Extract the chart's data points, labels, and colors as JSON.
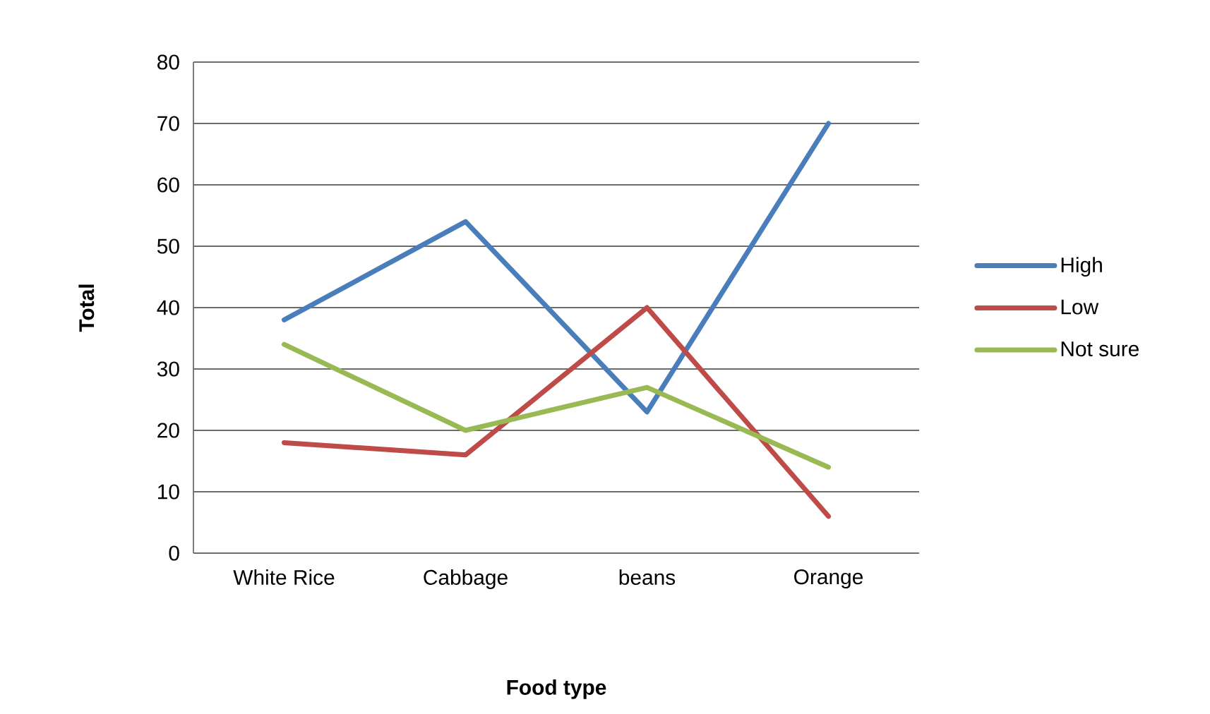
{
  "chart_data": {
    "type": "line",
    "xlabel": "Food type",
    "ylabel": "Total",
    "categories": [
      "White Rice",
      "Cabbage",
      "beans",
      "Orange"
    ],
    "series": [
      {
        "name": "High",
        "color": "#4a7ebb",
        "values": [
          38,
          54,
          23,
          70
        ]
      },
      {
        "name": "Low",
        "color": "#be4b48",
        "values": [
          18,
          16,
          40,
          6
        ]
      },
      {
        "name": "Not sure",
        "color": "#98b954",
        "values": [
          34,
          20,
          27,
          14
        ]
      }
    ],
    "ylim": [
      0,
      80
    ],
    "yticks": [
      0,
      10,
      20,
      30,
      40,
      50,
      60,
      70,
      80
    ],
    "grid": "y",
    "legend": "right",
    "marker": "none",
    "line_style": "solid"
  }
}
